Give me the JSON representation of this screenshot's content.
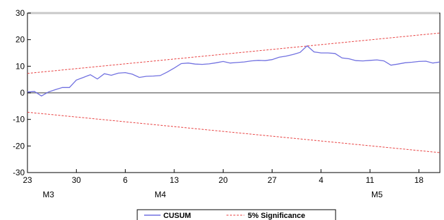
{
  "chart_data": {
    "type": "line",
    "ylim": [
      -30,
      30
    ],
    "yticks": [
      30,
      20,
      10,
      0,
      -10,
      -20,
      -30
    ],
    "x_day_labels": [
      "23",
      "30",
      "6",
      "13",
      "20",
      "27",
      "4",
      "11",
      "18"
    ],
    "x_month_labels": [
      "M3",
      "M4",
      "M5"
    ],
    "grid": false,
    "legend": {
      "placement": "bottom-center",
      "entries": [
        "CUSUM",
        "5% Significance"
      ]
    },
    "series": [
      {
        "name": "CUSUM",
        "color": "#6f6fe0",
        "style": "solid",
        "x": [
          "23",
          "24",
          "25",
          "26",
          "27",
          "28",
          "29",
          "30",
          "31",
          "1",
          "2",
          "3",
          "4",
          "5",
          "6",
          "7",
          "8",
          "9",
          "10",
          "11",
          "12",
          "13",
          "14",
          "15",
          "16",
          "17",
          "18",
          "19",
          "20",
          "21",
          "22",
          "23",
          "24",
          "25",
          "26",
          "27",
          "28",
          "29",
          "30",
          "1",
          "2",
          "3",
          "4",
          "5",
          "6",
          "7",
          "8",
          "9",
          "10",
          "11",
          "12",
          "13",
          "14",
          "15",
          "16",
          "17",
          "18",
          "19",
          "20",
          "21"
        ],
        "values": [
          0.3,
          0.5,
          -1.2,
          0.3,
          1.2,
          2.0,
          2.0,
          4.8,
          5.8,
          6.8,
          5.2,
          7.2,
          6.6,
          7.4,
          7.6,
          7.0,
          5.8,
          6.2,
          6.3,
          6.5,
          7.8,
          9.3,
          11.0,
          11.2,
          10.8,
          10.7,
          10.9,
          11.3,
          11.8,
          11.2,
          11.4,
          11.6,
          12.0,
          12.2,
          12.1,
          12.5,
          13.4,
          13.8,
          14.4,
          15.2,
          17.7,
          15.4,
          15.0,
          15.0,
          14.8,
          13.1,
          12.8,
          12.1,
          12.0,
          12.2,
          12.4,
          12.0,
          10.4,
          10.8,
          11.3,
          11.5,
          11.8,
          11.9,
          11.2,
          11.6
        ]
      },
      {
        "name": "5% Significance",
        "color": "#e84040",
        "style": "dashed",
        "upper": [
          7.3,
          22.5
        ],
        "lower": [
          -7.3,
          -22.5
        ]
      }
    ]
  }
}
